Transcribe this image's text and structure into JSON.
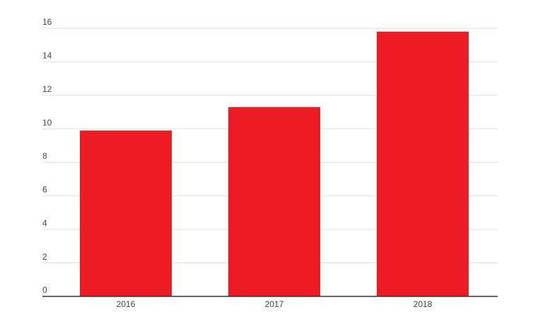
{
  "chart_data": {
    "type": "bar",
    "categories": [
      "2016",
      "2017",
      "2018"
    ],
    "values": [
      9.9,
      11.3,
      15.8
    ],
    "color": "#ed1c24",
    "ylim": [
      0,
      16
    ],
    "yticks": [
      0,
      2,
      4,
      6,
      8,
      10,
      12,
      14,
      16
    ],
    "grid": true
  }
}
